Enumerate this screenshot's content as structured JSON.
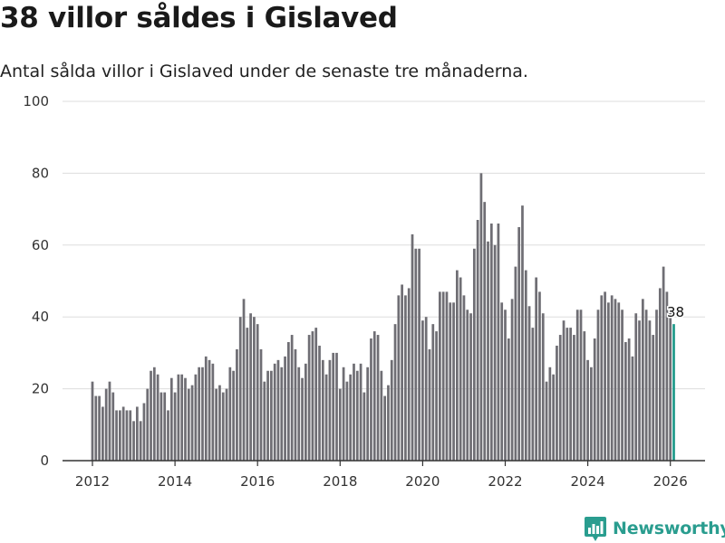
{
  "title": "38 villor såldes i Gislaved",
  "subtitle": "Antal sålda villor i Gislaved under de senaste tre månaderna.",
  "brand": {
    "name": "Newsworthy",
    "icon": "newsworthy-logo-icon",
    "color": "#2a9d8f"
  },
  "colors": {
    "bar": "#6f6e74",
    "highlight": "#1f9a8a",
    "grid": "#dddddd",
    "axis": "#333333"
  },
  "chart_data": {
    "type": "bar",
    "title": "38 villor såldes i Gislaved",
    "xlabel": "",
    "ylabel": "",
    "ylim": [
      0,
      100
    ],
    "yticks": [
      "0",
      "20",
      "40",
      "60",
      "80",
      "100"
    ],
    "xticks": [
      "2012",
      "2014",
      "2016",
      "2018",
      "2020",
      "2022",
      "2024",
      "2026"
    ],
    "x_start": 2012,
    "x_end": 2026,
    "x_domain": [
      2011.2,
      2027.0
    ],
    "points_per_year": 12,
    "values": [
      22,
      18,
      18,
      15,
      20,
      22,
      19,
      14,
      14,
      15,
      14,
      14,
      11,
      15,
      11,
      16,
      20,
      25,
      26,
      24,
      19,
      19,
      14,
      23,
      19,
      24,
      24,
      23,
      20,
      21,
      24,
      26,
      26,
      29,
      28,
      27,
      20,
      21,
      19,
      20,
      26,
      25,
      31,
      40,
      45,
      37,
      41,
      40,
      38,
      31,
      22,
      25,
      25,
      27,
      28,
      26,
      29,
      33,
      35,
      31,
      26,
      23,
      27,
      35,
      36,
      37,
      32,
      28,
      24,
      28,
      30,
      30,
      20,
      26,
      22,
      24,
      27,
      25,
      27,
      19,
      26,
      34,
      36,
      35,
      25,
      18,
      21,
      28,
      38,
      46,
      49,
      46,
      48,
      63,
      59,
      59,
      39,
      40,
      31,
      38,
      36,
      47,
      47,
      47,
      44,
      44,
      53,
      51,
      46,
      42,
      41,
      59,
      67,
      80,
      72,
      61,
      66,
      60,
      66,
      44,
      42,
      34,
      45,
      54,
      65,
      71,
      53,
      43,
      37,
      51,
      47,
      41,
      22,
      26,
      24,
      32,
      35,
      39,
      37,
      37,
      35,
      42,
      42,
      36,
      28,
      26,
      34,
      42,
      46,
      47,
      44,
      46,
      45,
      44,
      42,
      33,
      34,
      29,
      41,
      39,
      45,
      42,
      39,
      35,
      42,
      48,
      54,
      47,
      42,
      38
    ],
    "highlight_last": true,
    "last_label": "38"
  }
}
